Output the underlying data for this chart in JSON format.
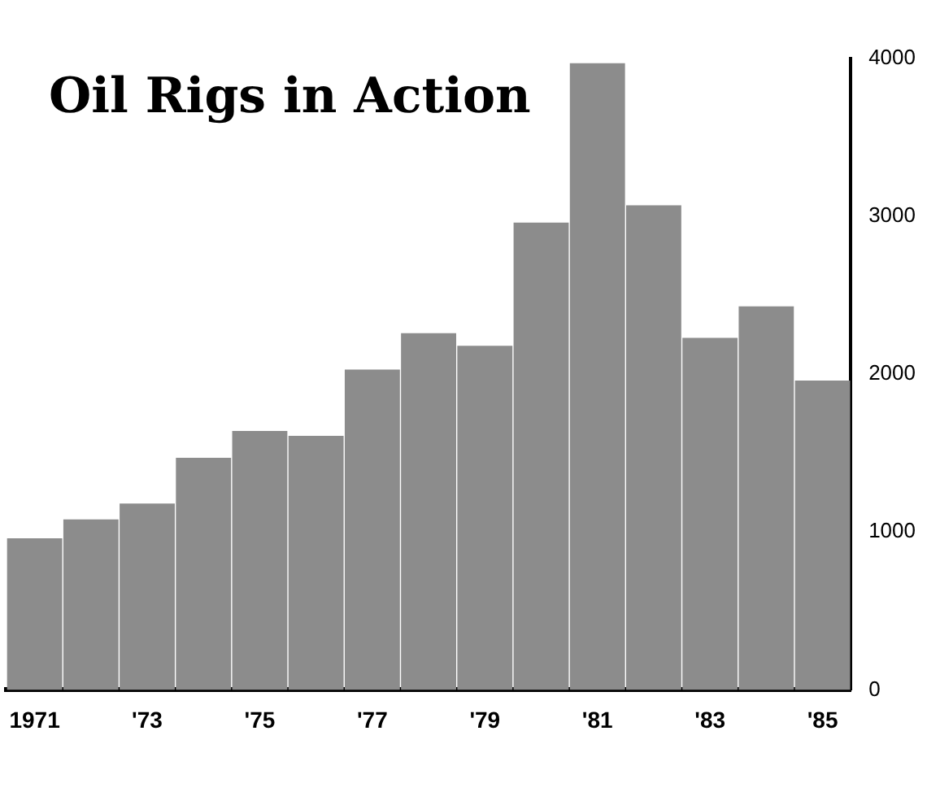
{
  "chart_data": {
    "type": "bar",
    "title": "Oil Rigs in Action",
    "categories": [
      "1971",
      null,
      "'73",
      null,
      "'75",
      null,
      "'77",
      null,
      "'79",
      null,
      "'81",
      null,
      "'83",
      null,
      "'85"
    ],
    "values": [
      960,
      1080,
      1180,
      1470,
      1640,
      1610,
      2030,
      2260,
      2180,
      2960,
      3970,
      3070,
      2230,
      2430,
      1960
    ],
    "color": "#8c8c8c",
    "ylim": [
      0,
      4000
    ],
    "yticks": [
      0,
      1000,
      2000,
      3000,
      4000
    ],
    "grid": false,
    "legend": false
  }
}
